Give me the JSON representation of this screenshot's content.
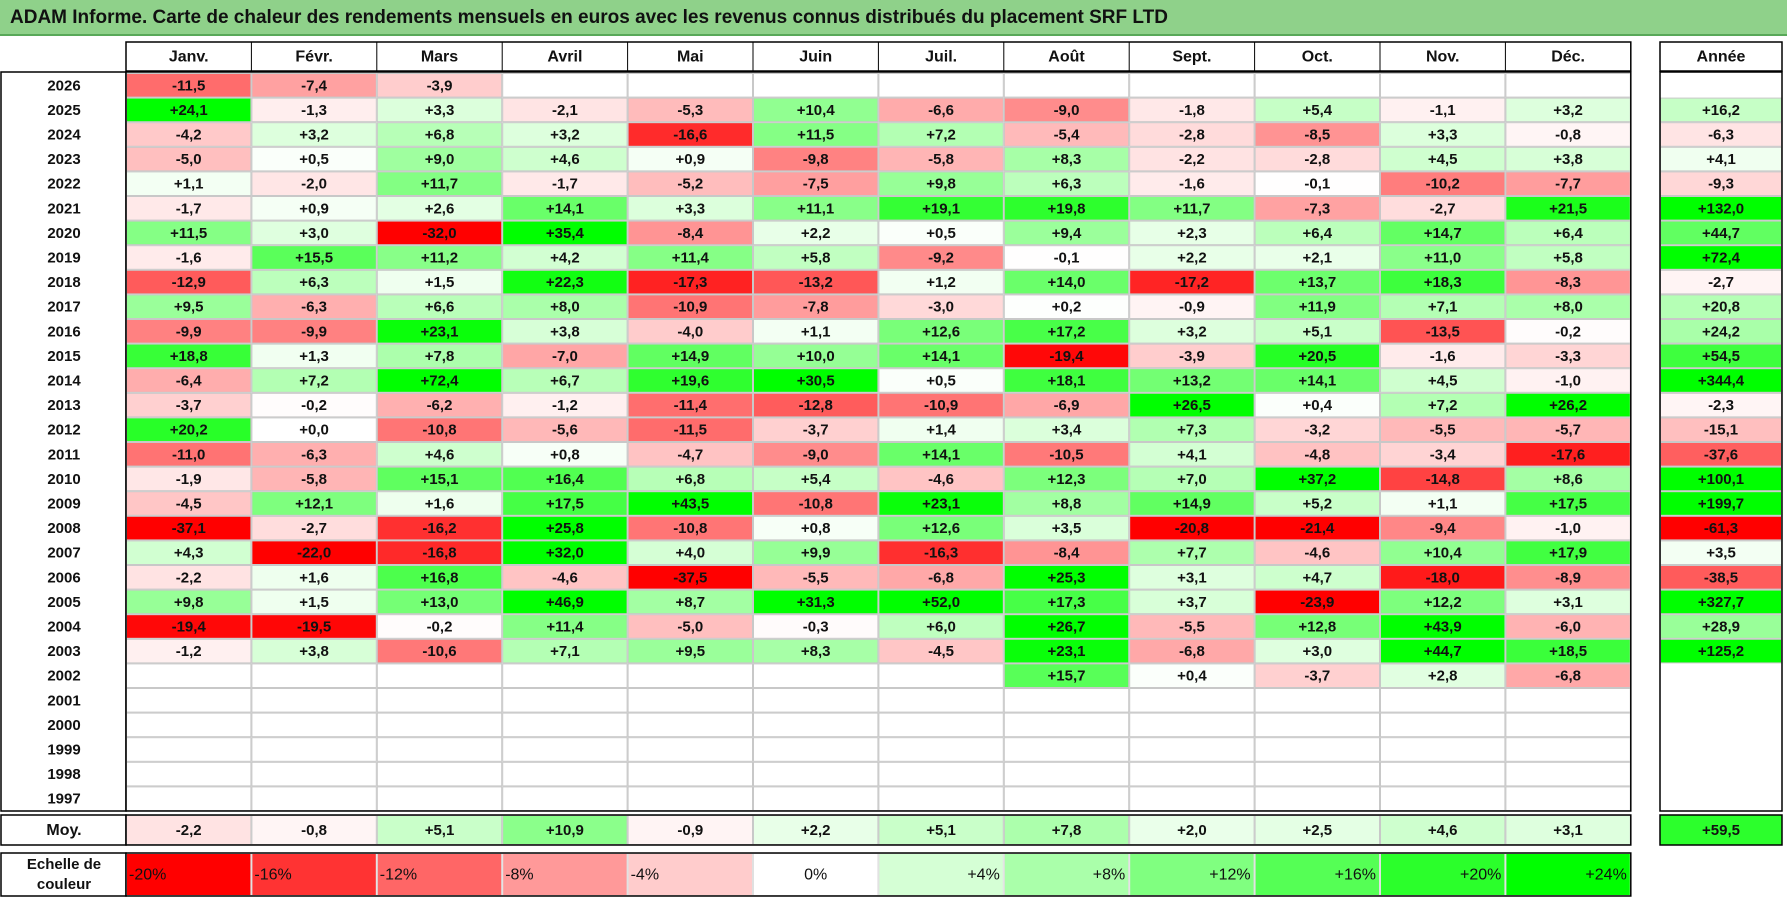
{
  "title": "ADAM Informe. Carte de chaleur des rendements mensuels en euros avec les revenus connus distribués du placement SRF LTD",
  "chart_data": {
    "type": "heatmap",
    "title": "ADAM Informe. Carte de chaleur des rendements mensuels en euros avec les revenus connus distribués du placement SRF LTD",
    "months": [
      "Janv.",
      "Févr.",
      "Mars",
      "Avril",
      "Mai",
      "Juin",
      "Juil.",
      "Août",
      "Sept.",
      "Oct.",
      "Nov.",
      "Déc."
    ],
    "year_header": "Année",
    "rows": [
      {
        "year": "2026",
        "values": [
          "-11,5",
          "-7,4",
          "-3,9",
          "",
          "",
          "",
          "",
          "",
          "",
          "",
          "",
          ""
        ],
        "annual": ""
      },
      {
        "year": "2025",
        "values": [
          "+24,1",
          "-1,3",
          "+3,3",
          "-2,1",
          "-5,3",
          "+10,4",
          "-6,6",
          "-9,0",
          "-1,8",
          "+5,4",
          "-1,1",
          "+3,2"
        ],
        "annual": "+16,2"
      },
      {
        "year": "2024",
        "values": [
          "-4,2",
          "+3,2",
          "+6,8",
          "+3,2",
          "-16,6",
          "+11,5",
          "+7,2",
          "-5,4",
          "-2,8",
          "-8,5",
          "+3,3",
          "-0,8"
        ],
        "annual": "-6,3"
      },
      {
        "year": "2023",
        "values": [
          "-5,0",
          "+0,5",
          "+9,0",
          "+4,6",
          "+0,9",
          "-9,8",
          "-5,8",
          "+8,3",
          "-2,2",
          "-2,8",
          "+4,5",
          "+3,8"
        ],
        "annual": "+4,1"
      },
      {
        "year": "2022",
        "values": [
          "+1,1",
          "-2,0",
          "+11,7",
          "-1,7",
          "-5,2",
          "-7,5",
          "+9,8",
          "+6,3",
          "-1,6",
          "-0,1",
          "-10,2",
          "-7,7"
        ],
        "annual": "-9,3"
      },
      {
        "year": "2021",
        "values": [
          "-1,7",
          "+0,9",
          "+2,6",
          "+14,1",
          "+3,3",
          "+11,1",
          "+19,1",
          "+19,8",
          "+11,7",
          "-7,3",
          "-2,7",
          "+21,5"
        ],
        "annual": "+132,0"
      },
      {
        "year": "2020",
        "values": [
          "+11,5",
          "+3,0",
          "-32,0",
          "+35,4",
          "-8,4",
          "+2,2",
          "+0,5",
          "+9,4",
          "+2,3",
          "+6,4",
          "+14,7",
          "+6,4"
        ],
        "annual": "+44,7"
      },
      {
        "year": "2019",
        "values": [
          "-1,6",
          "+15,5",
          "+11,2",
          "+4,2",
          "+11,4",
          "+5,8",
          "-9,2",
          "-0,1",
          "+2,2",
          "+2,1",
          "+11,0",
          "+5,8"
        ],
        "annual": "+72,4"
      },
      {
        "year": "2018",
        "values": [
          "-12,9",
          "+6,3",
          "+1,5",
          "+22,3",
          "-17,3",
          "-13,2",
          "+1,2",
          "+14,0",
          "-17,2",
          "+13,7",
          "+18,3",
          "-8,3"
        ],
        "annual": "-2,7"
      },
      {
        "year": "2017",
        "values": [
          "+9,5",
          "-6,3",
          "+6,6",
          "+8,0",
          "-10,9",
          "-7,8",
          "-3,0",
          "+0,2",
          "-0,9",
          "+11,9",
          "+7,1",
          "+8,0"
        ],
        "annual": "+20,8"
      },
      {
        "year": "2016",
        "values": [
          "-9,9",
          "-9,9",
          "+23,1",
          "+3,8",
          "-4,0",
          "+1,1",
          "+12,6",
          "+17,2",
          "+3,2",
          "+5,1",
          "-13,5",
          "-0,2"
        ],
        "annual": "+24,2"
      },
      {
        "year": "2015",
        "values": [
          "+18,8",
          "+1,3",
          "+7,8",
          "-7,0",
          "+14,9",
          "+10,0",
          "+14,1",
          "-19,4",
          "-3,9",
          "+20,5",
          "-1,6",
          "-3,3"
        ],
        "annual": "+54,5"
      },
      {
        "year": "2014",
        "values": [
          "-6,4",
          "+7,2",
          "+72,4",
          "+6,7",
          "+19,6",
          "+30,5",
          "+0,5",
          "+18,1",
          "+13,2",
          "+14,1",
          "+4,5",
          "-1,0"
        ],
        "annual": "+344,4"
      },
      {
        "year": "2013",
        "values": [
          "-3,7",
          "-0,2",
          "-6,2",
          "-1,2",
          "-11,4",
          "-12,8",
          "-10,9",
          "-6,9",
          "+26,5",
          "+0,4",
          "+7,2",
          "+26,2"
        ],
        "annual": "-2,3"
      },
      {
        "year": "2012",
        "values": [
          "+20,2",
          "+0,0",
          "-10,8",
          "-5,6",
          "-11,5",
          "-3,7",
          "+1,4",
          "+3,4",
          "+7,3",
          "-3,2",
          "-5,5",
          "-5,7"
        ],
        "annual": "-15,1"
      },
      {
        "year": "2011",
        "values": [
          "-11,0",
          "-6,3",
          "+4,6",
          "+0,8",
          "-4,7",
          "-9,0",
          "+14,1",
          "-10,5",
          "+4,1",
          "-4,8",
          "-3,4",
          "-17,6"
        ],
        "annual": "-37,6"
      },
      {
        "year": "2010",
        "values": [
          "-1,9",
          "-5,8",
          "+15,1",
          "+16,4",
          "+6,8",
          "+5,4",
          "-4,6",
          "+12,3",
          "+7,0",
          "+37,2",
          "-14,8",
          "+8,6"
        ],
        "annual": "+100,1"
      },
      {
        "year": "2009",
        "values": [
          "-4,5",
          "+12,1",
          "+1,6",
          "+17,5",
          "+43,5",
          "-10,8",
          "+23,1",
          "+8,8",
          "+14,9",
          "+5,2",
          "+1,1",
          "+17,5"
        ],
        "annual": "+199,7"
      },
      {
        "year": "2008",
        "values": [
          "-37,1",
          "-2,7",
          "-16,2",
          "+25,8",
          "-10,8",
          "+0,8",
          "+12,6",
          "+3,5",
          "-20,8",
          "-21,4",
          "-9,4",
          "-1,0"
        ],
        "annual": "-61,3"
      },
      {
        "year": "2007",
        "values": [
          "+4,3",
          "-22,0",
          "-16,8",
          "+32,0",
          "+4,0",
          "+9,9",
          "-16,3",
          "-8,4",
          "+7,7",
          "-4,6",
          "+10,4",
          "+17,9"
        ],
        "annual": "+3,5"
      },
      {
        "year": "2006",
        "values": [
          "-2,2",
          "+1,6",
          "+16,8",
          "-4,6",
          "-37,5",
          "-5,5",
          "-6,8",
          "+25,3",
          "+3,1",
          "+4,7",
          "-18,0",
          "-8,9"
        ],
        "annual": "-38,5"
      },
      {
        "year": "2005",
        "values": [
          "+9,8",
          "+1,5",
          "+13,0",
          "+46,9",
          "+8,7",
          "+31,3",
          "+52,0",
          "+17,3",
          "+3,7",
          "-23,9",
          "+12,2",
          "+3,1"
        ],
        "annual": "+327,7"
      },
      {
        "year": "2004",
        "values": [
          "-19,4",
          "-19,5",
          "-0,2",
          "+11,4",
          "-5,0",
          "-0,3",
          "+6,0",
          "+26,7",
          "-5,5",
          "+12,8",
          "+43,9",
          "-6,0"
        ],
        "annual": "+28,9"
      },
      {
        "year": "2003",
        "values": [
          "-1,2",
          "+3,8",
          "-10,6",
          "+7,1",
          "+9,5",
          "+8,3",
          "-4,5",
          "+23,1",
          "-6,8",
          "+3,0",
          "+44,7",
          "+18,5"
        ],
        "annual": "+125,2"
      },
      {
        "year": "2002",
        "values": [
          "",
          "",
          "",
          "",
          "",
          "",
          "",
          "+15,7",
          "+0,4",
          "-3,7",
          "+2,8",
          "-6,8"
        ],
        "annual": ""
      },
      {
        "year": "2001",
        "values": [
          "",
          "",
          "",
          "",
          "",
          "",
          "",
          "",
          "",
          "",
          "",
          ""
        ],
        "annual": ""
      },
      {
        "year": "2000",
        "values": [
          "",
          "",
          "",
          "",
          "",
          "",
          "",
          "",
          "",
          "",
          "",
          ""
        ],
        "annual": ""
      },
      {
        "year": "1999",
        "values": [
          "",
          "",
          "",
          "",
          "",
          "",
          "",
          "",
          "",
          "",
          "",
          ""
        ],
        "annual": ""
      },
      {
        "year": "1998",
        "values": [
          "",
          "",
          "",
          "",
          "",
          "",
          "",
          "",
          "",
          "",
          "",
          ""
        ],
        "annual": ""
      },
      {
        "year": "1997",
        "values": [
          "",
          "",
          "",
          "",
          "",
          "",
          "",
          "",
          "",
          "",
          "",
          ""
        ],
        "annual": ""
      }
    ],
    "average": {
      "label": "Moy.",
      "values": [
        "-2,2",
        "-0,8",
        "+5,1",
        "+10,9",
        "-0,9",
        "+2,2",
        "+5,1",
        "+7,8",
        "+2,0",
        "+2,5",
        "+4,6",
        "+3,1"
      ],
      "annual": "+59,5"
    },
    "scale": {
      "label": [
        "Echelle de",
        "couleur"
      ],
      "stops": [
        "-20%",
        "-16%",
        "-12%",
        "-8%",
        "-4%",
        "0%",
        "+4%",
        "+8%",
        "+12%",
        "+16%",
        "+20%",
        "+24%"
      ],
      "stop_values": [
        -20,
        -16,
        -12,
        -8,
        -4,
        0,
        4,
        8,
        12,
        16,
        20,
        24
      ]
    },
    "colors": {
      "negative": "#ff0000",
      "neutral": "#ffffff",
      "positive": "#00ff00",
      "title_bar": "#8fd18a"
    }
  }
}
